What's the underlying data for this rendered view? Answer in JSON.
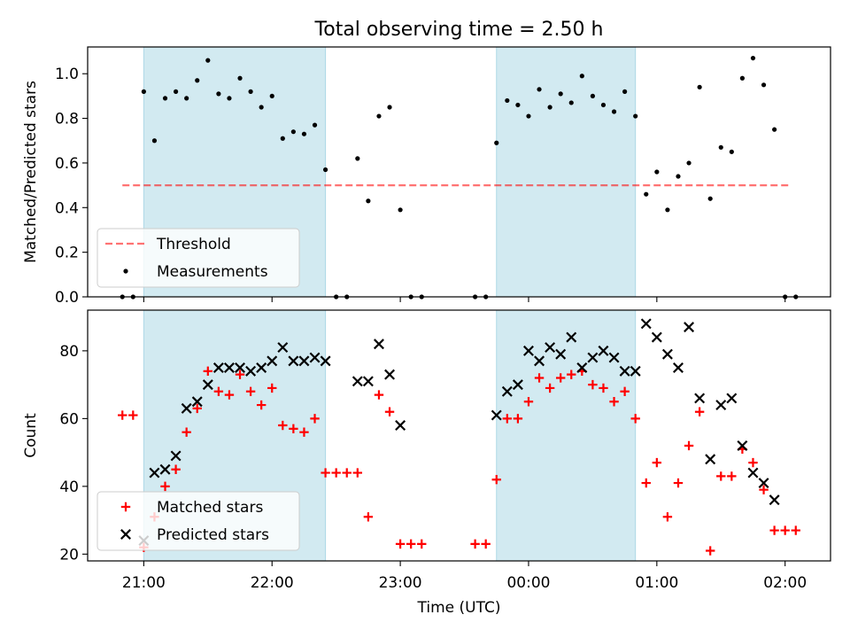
{
  "title": "Total observing time = 2.50 h",
  "xlabel": "Time (UTC)",
  "x_ticks": [
    "21:00",
    "22:00",
    "23:00",
    "00:00",
    "01:00",
    "02:00"
  ],
  "colors": {
    "shade": "#add8e6",
    "threshold": "#ff0000",
    "measurement": "#000000",
    "matched": "#ff0000",
    "predicted": "#000000"
  },
  "chart_data": [
    {
      "type": "scatter",
      "ylabel": "Matched/Predicted stars",
      "ylim": [
        0,
        1.12
      ],
      "y_ticks": [
        "0.0",
        "0.2",
        "0.4",
        "0.6",
        "0.8",
        "1.0"
      ],
      "shaded_intervals": [
        [
          "21:00",
          "22:25"
        ],
        [
          "23:45",
          "00:50"
        ]
      ],
      "threshold": {
        "name": "Threshold",
        "value": 0.5,
        "x_range": [
          "20:50",
          "02:03"
        ]
      },
      "legend": {
        "position": "lower left",
        "entries": [
          "Threshold",
          "Measurements"
        ]
      },
      "series": [
        {
          "name": "Measurements",
          "points": [
            [
              "20:50",
              0.0
            ],
            [
              "20:55",
              0.0
            ],
            [
              "21:00",
              0.92
            ],
            [
              "21:05",
              0.7
            ],
            [
              "21:10",
              0.89
            ],
            [
              "21:15",
              0.92
            ],
            [
              "21:20",
              0.89
            ],
            [
              "21:25",
              0.97
            ],
            [
              "21:30",
              1.06
            ],
            [
              "21:35",
              0.91
            ],
            [
              "21:40",
              0.89
            ],
            [
              "21:45",
              0.98
            ],
            [
              "21:50",
              0.92
            ],
            [
              "21:55",
              0.85
            ],
            [
              "22:00",
              0.9
            ],
            [
              "22:05",
              0.71
            ],
            [
              "22:10",
              0.74
            ],
            [
              "22:15",
              0.73
            ],
            [
              "22:20",
              0.77
            ],
            [
              "22:25",
              0.57
            ],
            [
              "22:30",
              0.0
            ],
            [
              "22:35",
              0.0
            ],
            [
              "22:40",
              0.62
            ],
            [
              "22:45",
              0.43
            ],
            [
              "22:50",
              0.81
            ],
            [
              "22:55",
              0.85
            ],
            [
              "23:00",
              0.39
            ],
            [
              "23:05",
              0.0
            ],
            [
              "23:10",
              0.0
            ],
            [
              "23:35",
              0.0
            ],
            [
              "23:40",
              0.0
            ],
            [
              "23:45",
              0.69
            ],
            [
              "23:50",
              0.88
            ],
            [
              "23:55",
              0.86
            ],
            [
              "00:00",
              0.81
            ],
            [
              "00:05",
              0.93
            ],
            [
              "00:10",
              0.85
            ],
            [
              "00:15",
              0.91
            ],
            [
              "00:20",
              0.87
            ],
            [
              "00:25",
              0.99
            ],
            [
              "00:30",
              0.9
            ],
            [
              "00:35",
              0.86
            ],
            [
              "00:40",
              0.83
            ],
            [
              "00:45",
              0.92
            ],
            [
              "00:50",
              0.81
            ],
            [
              "00:55",
              0.46
            ],
            [
              "01:00",
              0.56
            ],
            [
              "01:05",
              0.39
            ],
            [
              "01:10",
              0.54
            ],
            [
              "01:15",
              0.6
            ],
            [
              "01:20",
              0.94
            ],
            [
              "01:25",
              0.44
            ],
            [
              "01:30",
              0.67
            ],
            [
              "01:35",
              0.65
            ],
            [
              "01:40",
              0.98
            ],
            [
              "01:45",
              1.07
            ],
            [
              "01:50",
              0.95
            ],
            [
              "01:55",
              0.75
            ],
            [
              "02:00",
              0.0
            ],
            [
              "02:05",
              0.0
            ]
          ]
        }
      ]
    },
    {
      "type": "scatter",
      "ylabel": "Count",
      "ylim": [
        18,
        92
      ],
      "y_ticks": [
        "20",
        "40",
        "60",
        "80"
      ],
      "shaded_intervals": [
        [
          "21:00",
          "22:25"
        ],
        [
          "23:45",
          "00:50"
        ]
      ],
      "legend": {
        "position": "lower left",
        "entries": [
          "Matched stars",
          "Predicted stars"
        ]
      },
      "series": [
        {
          "name": "Matched stars",
          "points": [
            [
              "20:50",
              61
            ],
            [
              "20:55",
              61
            ],
            [
              "21:00",
              22
            ],
            [
              "21:05",
              31
            ],
            [
              "21:10",
              40
            ],
            [
              "21:15",
              45
            ],
            [
              "21:20",
              56
            ],
            [
              "21:25",
              63
            ],
            [
              "21:30",
              74
            ],
            [
              "21:35",
              68
            ],
            [
              "21:40",
              67
            ],
            [
              "21:45",
              73
            ],
            [
              "21:50",
              68
            ],
            [
              "21:55",
              64
            ],
            [
              "22:00",
              69
            ],
            [
              "22:05",
              58
            ],
            [
              "22:10",
              57
            ],
            [
              "22:15",
              56
            ],
            [
              "22:20",
              60
            ],
            [
              "22:25",
              44
            ],
            [
              "22:30",
              44
            ],
            [
              "22:35",
              44
            ],
            [
              "22:40",
              44
            ],
            [
              "22:45",
              31
            ],
            [
              "22:50",
              67
            ],
            [
              "22:55",
              62
            ],
            [
              "23:00",
              23
            ],
            [
              "23:05",
              23
            ],
            [
              "23:10",
              23
            ],
            [
              "23:35",
              23
            ],
            [
              "23:40",
              23
            ],
            [
              "23:45",
              42
            ],
            [
              "23:50",
              60
            ],
            [
              "23:55",
              60
            ],
            [
              "00:00",
              65
            ],
            [
              "00:05",
              72
            ],
            [
              "00:10",
              69
            ],
            [
              "00:15",
              72
            ],
            [
              "00:20",
              73
            ],
            [
              "00:25",
              74
            ],
            [
              "00:30",
              70
            ],
            [
              "00:35",
              69
            ],
            [
              "00:40",
              65
            ],
            [
              "00:45",
              68
            ],
            [
              "00:50",
              60
            ],
            [
              "00:55",
              41
            ],
            [
              "01:00",
              47
            ],
            [
              "01:05",
              31
            ],
            [
              "01:10",
              41
            ],
            [
              "01:15",
              52
            ],
            [
              "01:20",
              62
            ],
            [
              "01:25",
              21
            ],
            [
              "01:30",
              43
            ],
            [
              "01:35",
              43
            ],
            [
              "01:40",
              51
            ],
            [
              "01:45",
              47
            ],
            [
              "01:50",
              39
            ],
            [
              "01:55",
              27
            ],
            [
              "02:00",
              27
            ],
            [
              "02:05",
              27
            ]
          ]
        },
        {
          "name": "Predicted stars",
          "points": [
            [
              "21:00",
              24
            ],
            [
              "21:05",
              44
            ],
            [
              "21:10",
              45
            ],
            [
              "21:15",
              49
            ],
            [
              "21:20",
              63
            ],
            [
              "21:25",
              65
            ],
            [
              "21:30",
              70
            ],
            [
              "21:35",
              75
            ],
            [
              "21:40",
              75
            ],
            [
              "21:45",
              75
            ],
            [
              "21:50",
              74
            ],
            [
              "21:55",
              75
            ],
            [
              "22:00",
              77
            ],
            [
              "22:05",
              81
            ],
            [
              "22:10",
              77
            ],
            [
              "22:15",
              77
            ],
            [
              "22:20",
              78
            ],
            [
              "22:25",
              77
            ],
            [
              "22:40",
              71
            ],
            [
              "22:45",
              71
            ],
            [
              "22:50",
              82
            ],
            [
              "22:55",
              73
            ],
            [
              "23:00",
              58
            ],
            [
              "23:45",
              61
            ],
            [
              "23:50",
              68
            ],
            [
              "23:55",
              70
            ],
            [
              "00:00",
              80
            ],
            [
              "00:05",
              77
            ],
            [
              "00:10",
              81
            ],
            [
              "00:15",
              79
            ],
            [
              "00:20",
              84
            ],
            [
              "00:25",
              75
            ],
            [
              "00:30",
              78
            ],
            [
              "00:35",
              80
            ],
            [
              "00:40",
              78
            ],
            [
              "00:45",
              74
            ],
            [
              "00:50",
              74
            ],
            [
              "00:55",
              88
            ],
            [
              "01:00",
              84
            ],
            [
              "01:05",
              79
            ],
            [
              "01:10",
              75
            ],
            [
              "01:15",
              87
            ],
            [
              "01:20",
              66
            ],
            [
              "01:25",
              48
            ],
            [
              "01:30",
              64
            ],
            [
              "01:35",
              66
            ],
            [
              "01:40",
              52
            ],
            [
              "01:45",
              44
            ],
            [
              "01:50",
              41
            ],
            [
              "01:55",
              36
            ]
          ]
        }
      ]
    }
  ]
}
